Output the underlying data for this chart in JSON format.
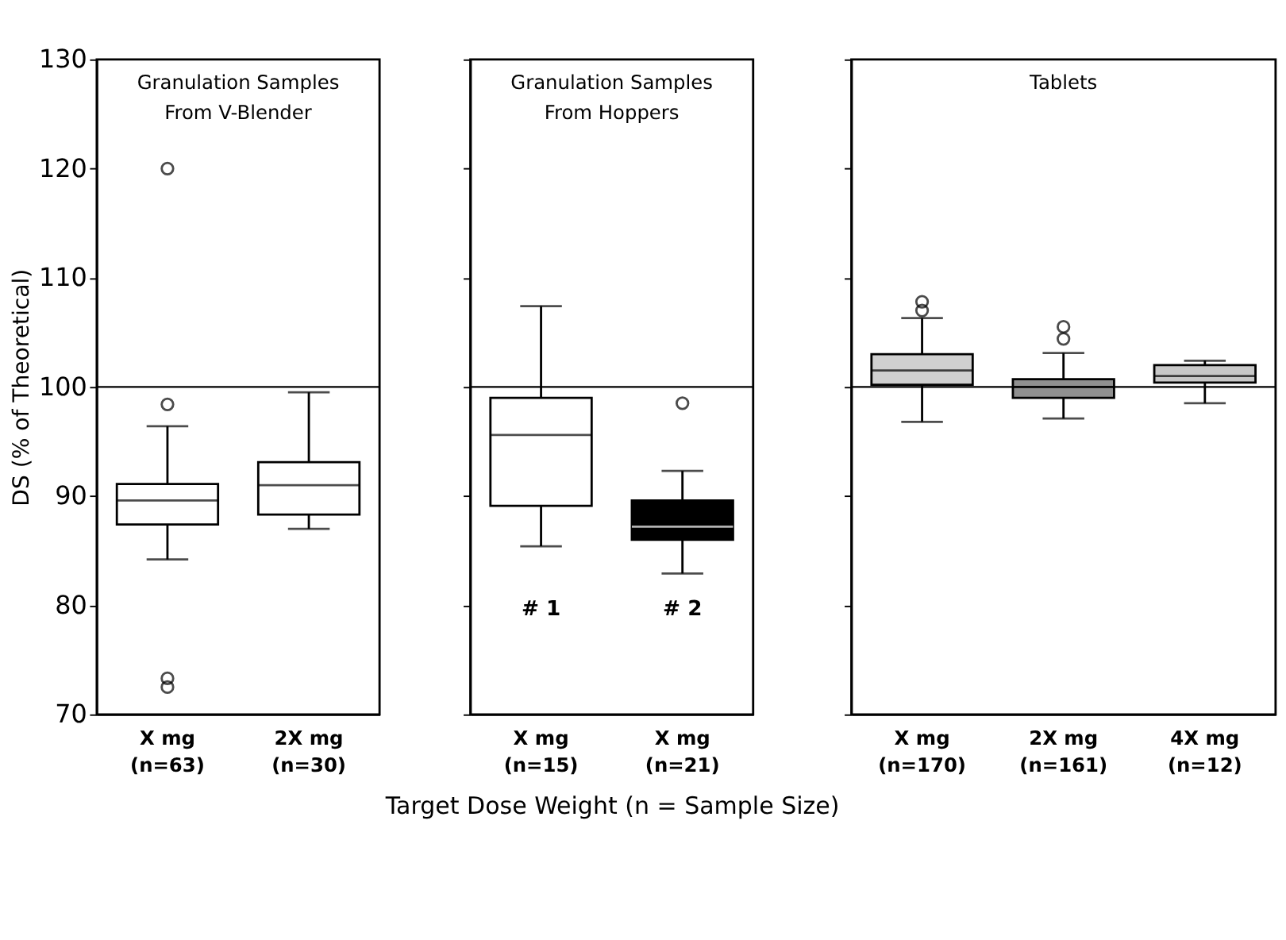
{
  "chart_data": [
    {
      "type": "box",
      "title": "Granulation Samples\nFrom V-Blender",
      "ylabel": "DS (% of Theoretical)",
      "categories": [
        "X mg\n(n=63)",
        "2X mg\n(n=30)"
      ],
      "colors": [
        "#ffffff",
        "#ffffff"
      ],
      "boxes": [
        {
          "low": 84.2,
          "q1": 87.4,
          "median": 89.6,
          "q3": 91.1,
          "high": 96.4,
          "outliers": [
            120,
            98.4,
            73.3,
            72.5
          ]
        },
        {
          "low": 87.0,
          "q1": 88.3,
          "median": 91.0,
          "q3": 93.1,
          "high": 99.5
        }
      ],
      "ylim": [
        70,
        130
      ],
      "yticks": [
        70,
        80,
        90,
        100,
        110,
        120,
        130
      ],
      "ref_lines": [
        {
          "axis": "y",
          "value": 100
        }
      ],
      "grid": false
    },
    {
      "type": "box",
      "title": "Granulation Samples\nFrom Hoppers",
      "xlabel": "Target Dose Weight (n = Sample Size)",
      "categories": [
        "X mg\n(n=15)",
        "X mg\n(n=21)"
      ],
      "colors": [
        "#ffffff",
        "#000000"
      ],
      "boxes": [
        {
          "low": 85.4,
          "q1": 89.1,
          "median": 95.6,
          "q3": 99.0,
          "high": 107.4
        },
        {
          "low": 82.9,
          "q1": 86.0,
          "median": 87.2,
          "q3": 89.6,
          "high": 92.3,
          "outliers": [
            98.5
          ]
        }
      ],
      "annotations": [
        "# 1",
        "# 2"
      ],
      "ylim": [
        70,
        130
      ],
      "yticks": [
        70,
        80,
        90,
        100,
        110,
        120,
        130
      ],
      "tick_labels": "x",
      "ref_lines": [
        {
          "axis": "y",
          "value": 100
        }
      ],
      "grid": false
    },
    {
      "type": "box",
      "title": "Tablets",
      "categories": [
        "X mg\n(n=170)",
        "2X mg\n(n=161)",
        "4X mg\n(n=12)"
      ],
      "colors": [
        "#d0d0d0",
        "#909090",
        "#c8c8c8"
      ],
      "boxes": [
        {
          "low": 96.8,
          "q1": 100.2,
          "median": 101.5,
          "q3": 103.0,
          "high": 106.3,
          "outliers": [
            107.8,
            107.0
          ]
        },
        {
          "low": 97.1,
          "q1": 99.0,
          "median": 100.0,
          "q3": 100.7,
          "high": 103.1,
          "outliers": [
            105.5,
            104.4
          ]
        },
        {
          "low": 98.5,
          "q1": 100.4,
          "median": 101.0,
          "q3": 102.0,
          "high": 102.4
        }
      ],
      "ylim": [
        70,
        130
      ],
      "yticks": [
        70,
        80,
        90,
        100,
        110,
        120,
        130
      ],
      "tick_labels": "x",
      "ref_lines": [
        {
          "axis": "y",
          "value": 100
        }
      ],
      "grid": false
    }
  ]
}
